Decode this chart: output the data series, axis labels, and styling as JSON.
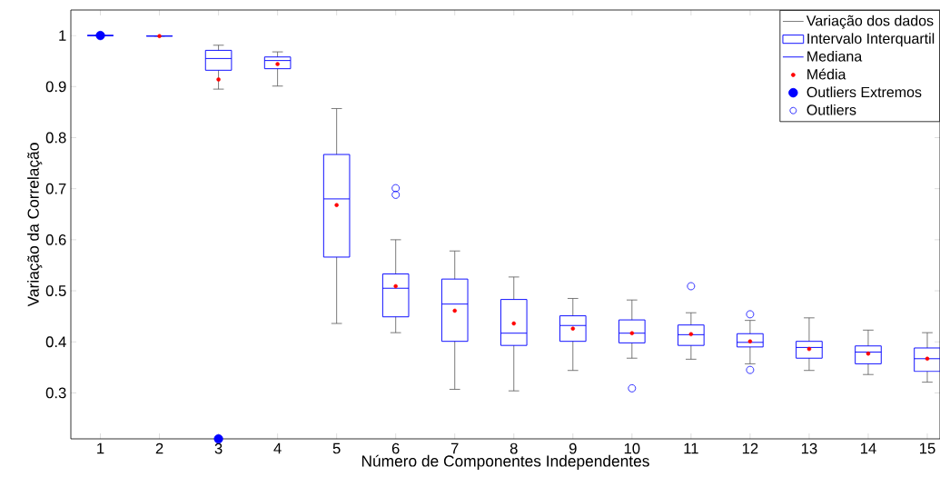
{
  "chart_data": {
    "type": "box",
    "xlabel": "Número de Componentes Independentes",
    "ylabel": "Variação da Correlação",
    "categories": [
      "1",
      "2",
      "3",
      "4",
      "5",
      "6",
      "7",
      "8",
      "9",
      "10",
      "11",
      "12",
      "13",
      "14",
      "15"
    ],
    "color": "#0000ff",
    "ylim": [
      0.21,
      1.05
    ],
    "yticks": [
      0.3,
      0.4,
      0.5,
      0.6,
      0.7,
      0.8,
      0.9,
      1
    ],
    "boxes": [
      {
        "low": 1.0,
        "q1": 1.0,
        "median": 1.0,
        "q3": 1.0,
        "high": 1.0
      },
      {
        "low": 0.999,
        "q1": 0.999,
        "median": 0.999,
        "q3": 0.999,
        "high": 0.999,
        "mean": 0.999
      },
      {
        "low": 0.895,
        "q1": 0.932,
        "median": 0.955,
        "q3": 0.971,
        "high": 0.981,
        "mean": 0.914
      },
      {
        "low": 0.901,
        "q1": 0.935,
        "median": 0.951,
        "q3": 0.958,
        "high": 0.968,
        "mean": 0.944
      },
      {
        "low": 0.436,
        "q1": 0.566,
        "median": 0.68,
        "q3": 0.767,
        "high": 0.857,
        "mean": 0.668
      },
      {
        "low": 0.418,
        "q1": 0.449,
        "median": 0.505,
        "q3": 0.533,
        "high": 0.6,
        "mean": 0.509,
        "outliers": [
          0.701,
          0.688
        ]
      },
      {
        "low": 0.307,
        "q1": 0.401,
        "median": 0.474,
        "q3": 0.523,
        "high": 0.578,
        "mean": 0.461
      },
      {
        "low": 0.304,
        "q1": 0.393,
        "median": 0.417,
        "q3": 0.483,
        "high": 0.527,
        "mean": 0.436
      },
      {
        "low": 0.344,
        "q1": 0.401,
        "median": 0.432,
        "q3": 0.451,
        "high": 0.485,
        "mean": 0.426
      },
      {
        "low": 0.368,
        "q1": 0.398,
        "median": 0.417,
        "q3": 0.443,
        "high": 0.482,
        "mean": 0.417,
        "outliers": [
          0.309
        ]
      },
      {
        "low": 0.366,
        "q1": 0.393,
        "median": 0.414,
        "q3": 0.433,
        "high": 0.457,
        "mean": 0.415,
        "outliers": [
          0.509
        ]
      },
      {
        "low": 0.357,
        "q1": 0.39,
        "median": 0.399,
        "q3": 0.416,
        "high": 0.442,
        "mean": 0.401,
        "outliers": [
          0.454,
          0.345
        ]
      },
      {
        "low": 0.344,
        "q1": 0.368,
        "median": 0.389,
        "q3": 0.401,
        "high": 0.447,
        "mean": 0.386
      },
      {
        "low": 0.336,
        "q1": 0.357,
        "median": 0.38,
        "q3": 0.392,
        "high": 0.423,
        "mean": 0.377
      },
      {
        "low": 0.321,
        "q1": 0.342,
        "median": 0.367,
        "q3": 0.388,
        "high": 0.418,
        "mean": 0.367
      }
    ],
    "series": [
      {
        "type": "scatter",
        "name": "Outliers Extremos",
        "color": "#0000ff",
        "marker": "circle",
        "x": [
          "1",
          "3"
        ],
        "values": [
          1.0,
          0.21
        ]
      }
    ],
    "annotations": [
      "Variação dos dados",
      "Intervalo Interquartil",
      "Mediana",
      "Média",
      "Outliers"
    ],
    "legend": "top right"
  }
}
